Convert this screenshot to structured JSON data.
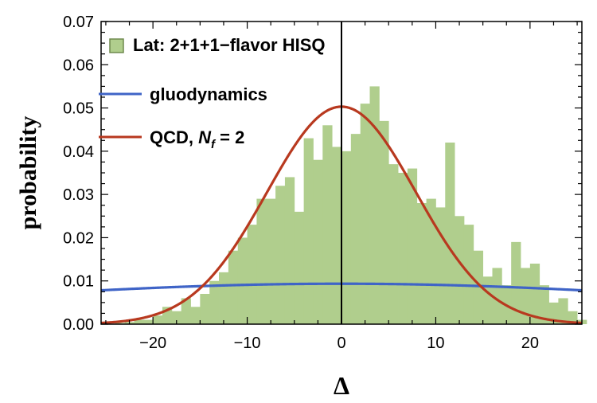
{
  "chart_data": {
    "type": "bar",
    "title": "",
    "xlabel": "Δ",
    "ylabel": "probability",
    "xlim": [
      -25.5,
      25.5
    ],
    "ylim": [
      0,
      0.07
    ],
    "xticks": [
      -20,
      -10,
      0,
      10,
      20
    ],
    "xtick_labels": [
      "−20",
      "−10",
      "0",
      "10",
      "20"
    ],
    "yticks": [
      0,
      0.01,
      0.02,
      0.03,
      0.04,
      0.05,
      0.06,
      0.07
    ],
    "ytick_labels": [
      "0.00",
      "0.01",
      "0.02",
      "0.03",
      "0.04",
      "0.05",
      "0.06",
      "0.07"
    ],
    "grid": false,
    "legend_position": "top-left",
    "histogram": {
      "name": "Lat: 2+1+1−flavor HISQ",
      "color": "#b0ce8d",
      "bin_width": 1,
      "bin_start": -24,
      "values": [
        0.0003,
        0.0005,
        0.001,
        0.001,
        0.002,
        0.004,
        0.003,
        0.006,
        0.004,
        0.007,
        0.01,
        0.012,
        0.017,
        0.02,
        0.023,
        0.029,
        0.029,
        0.032,
        0.034,
        0.026,
        0.043,
        0.038,
        0.046,
        0.041,
        0.04,
        0.044,
        0.051,
        0.055,
        0.047,
        0.037,
        0.035,
        0.036,
        0.028,
        0.029,
        0.027,
        0.042,
        0.025,
        0.023,
        0.017,
        0.011,
        0.013,
        0.009,
        0.019,
        0.013,
        0.014,
        0.009,
        0.005,
        0.006,
        0.003,
        0.001
      ]
    },
    "series": [
      {
        "name": "gluodynamics",
        "color": "#3f64c7",
        "distribution": "gaussian",
        "amplitude": 0.00935,
        "sigma": 42.7
      },
      {
        "name": "QCD, N_f = 2",
        "name_parts": [
          "QCD, ",
          "N",
          "f",
          " = 2"
        ],
        "color": "#b8391f",
        "distribution": "gaussian",
        "amplitude": 0.0503,
        "sigma": 7.9
      }
    ],
    "vertical_line_x": 0
  }
}
